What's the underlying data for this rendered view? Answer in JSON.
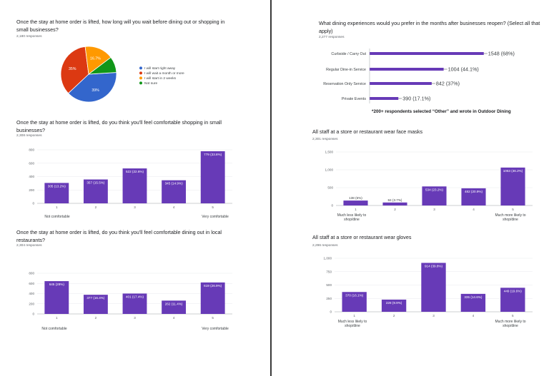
{
  "colors": {
    "bar": "#673ab7",
    "pie": [
      "#3366cc",
      "#dc3912",
      "#ff9900",
      "#109618"
    ]
  },
  "note": "*200+ respondents selected “Other” and wrote in Outdoor Dining",
  "questions": [
    {
      "title": "Once the stay at home order is lifted, how long will you wait before dining out or shopping in small businesses?",
      "responses": "2,180 responses"
    },
    {
      "title": "Once the stay at home order is lifted, do you think you'll feel comfortable shopping in small businesses?",
      "responses": "2,308 responses"
    },
    {
      "title": "Once the stay at home order is lifted, do you think you'll feel comfortable dining out in local restaurants?",
      "responses": "2,304 responses"
    },
    {
      "title": "What dining experiences would you prefer in the months after businesses reopen? (Select all that apply)",
      "responses": "2,277 responses"
    },
    {
      "title": "All staff at a store or restaurant wear face masks",
      "responses": "2,301 responses"
    },
    {
      "title": "All staff at a store or restaurant wear gloves",
      "responses": "2,296 responses"
    }
  ],
  "chart_data": [
    {
      "type": "pie",
      "slices": [
        {
          "label": "I will start right away",
          "value": 39,
          "text": "39%"
        },
        {
          "label": "I will wait a month or more",
          "value": 35,
          "text": "35%"
        },
        {
          "label": "I will start in 2 weeks",
          "value": 16.7,
          "text": "16.7%"
        },
        {
          "label": "Not sure",
          "value": 9.3,
          "text": ""
        }
      ],
      "legend": "right"
    },
    {
      "type": "bar",
      "categories": [
        "1",
        "2",
        "3",
        "4",
        "5"
      ],
      "values": [
        305,
        357,
        522,
        345,
        779
      ],
      "data_labels": [
        "305 (13.2%)",
        "357 (15.5%)",
        "522 (22.6%)",
        "345 (14.9%)",
        "779 (33.8%)"
      ],
      "ylim": [
        0,
        800
      ],
      "yticks": [
        0,
        200,
        400,
        600,
        800
      ],
      "ytick_labels": [
        "0",
        "200",
        "400",
        "600",
        "800"
      ],
      "end_labels": [
        "Not comfortable",
        "Very comfortable"
      ]
    },
    {
      "type": "bar",
      "categories": [
        "1",
        "2",
        "3",
        "4",
        "5"
      ],
      "values": [
        645,
        377,
        401,
        262,
        619
      ],
      "data_labels": [
        "645 (28%)",
        "377 (16.4%)",
        "401 (17.4%)",
        "262 (11.4%)",
        "619 (26.9%)"
      ],
      "ylim": [
        0,
        800
      ],
      "yticks": [
        0,
        200,
        400,
        600,
        800
      ],
      "ytick_labels": [
        "0",
        "200",
        "400",
        "600",
        "800"
      ],
      "end_labels": [
        "Not comfortable",
        "Very comfortable"
      ]
    },
    {
      "type": "bar",
      "orientation": "horizontal",
      "categories": [
        "Curbside / Carry Out",
        "Regular Dine-in Service",
        "Reservation Only Service",
        "Private Events"
      ],
      "values": [
        1548,
        1004,
        842,
        390
      ],
      "data_labels": [
        "1548 (68%)",
        "1004 (44.1%)",
        "842 (37%)",
        "390 (17.1%)"
      ],
      "xlim": [
        0,
        2277
      ]
    },
    {
      "type": "bar",
      "categories": [
        "1",
        "2",
        "3",
        "4",
        "5"
      ],
      "values": [
        138,
        84,
        534,
        482,
        1063
      ],
      "data_labels": [
        "138 (6%)",
        "84 (3.7%)",
        "534 (23.2%)",
        "482 (20.9%)",
        "1063 (46.2%)"
      ],
      "ylim": [
        0,
        1500
      ],
      "yticks": [
        0,
        500,
        1000,
        1500
      ],
      "ytick_labels": [
        "0",
        "500",
        "1,000",
        "1,500"
      ],
      "end_labels": [
        "Much less likely to shop/dine",
        "Much more likely to shop/dine"
      ]
    },
    {
      "type": "bar",
      "categories": [
        "1",
        "2",
        "3",
        "4",
        "5"
      ],
      "values": [
        370,
        228,
        914,
        335,
        449
      ],
      "data_labels": [
        "370 (16.1%)",
        "228 (9.9%)",
        "914 (39.8%)",
        "335 (14.6%)",
        "449 (19.6%)"
      ],
      "ylim": [
        0,
        1000
      ],
      "yticks": [
        0,
        250,
        500,
        750,
        1000
      ],
      "ytick_labels": [
        "0",
        "250",
        "500",
        "750",
        "1,000"
      ],
      "end_labels": [
        "Much less likely to shop/dine",
        "Much more likely to shop/dine"
      ]
    }
  ]
}
